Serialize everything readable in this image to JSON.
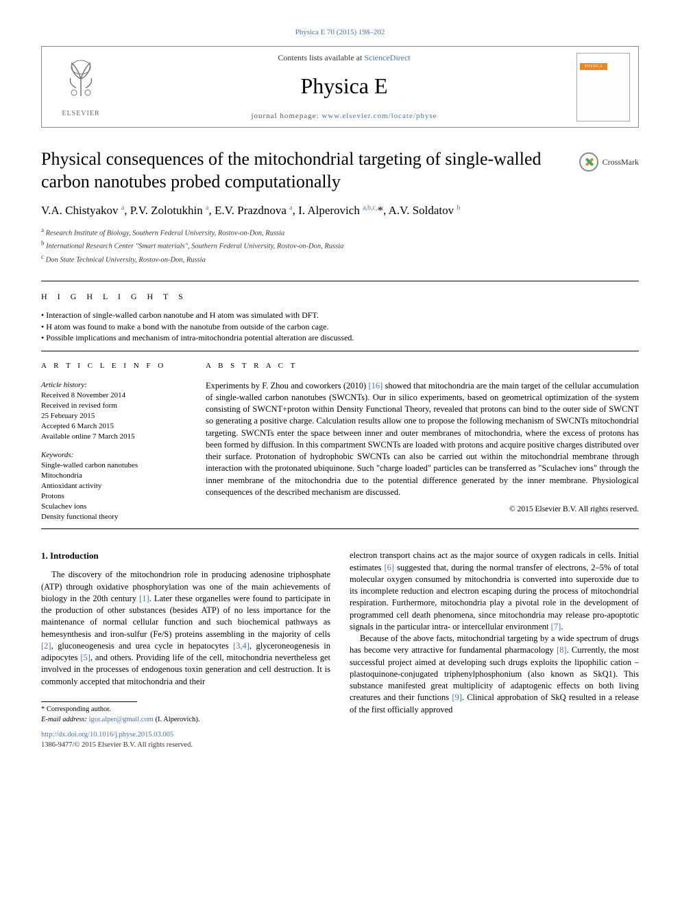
{
  "header": {
    "citation_link": "Physica E 70 (2015) 198–202",
    "contents_prefix": "Contents lists available at ",
    "contents_link": "ScienceDirect",
    "journal_name": "Physica E",
    "homepage_prefix": "journal homepage: ",
    "homepage_url": "www.elsevier.com/locate/physe",
    "publisher_label": "ELSEVIER",
    "cover_badge": "PHYSICA"
  },
  "article": {
    "title": "Physical consequences of the mitochondrial targeting of single-walled carbon nanotubes probed computationally",
    "crossmark_label": "CrossMark",
    "authors_html": "V.A. Chistyakov <sup>a</sup>, P.V. Zolotukhin <sup>a</sup>, E.V. Prazdnova <sup>a</sup>, I. Alperovich <sup>a,b,c,</sup><span class=\"star\">*</span>, A.V. Soldatov <sup>b</sup>",
    "affiliations": [
      {
        "mark": "a",
        "text": "Research Institute of Biology, Southern Federal University, Rostov-on-Don, Russia"
      },
      {
        "mark": "b",
        "text": "International Research Center \"Smart materials\", Southern Federal University, Rostov-on-Don, Russia"
      },
      {
        "mark": "c",
        "text": "Don State Technical University, Rostov-on-Don, Russia"
      }
    ]
  },
  "highlights": {
    "label": "H I G H L I G H T S",
    "items": [
      "Interaction of single-walled carbon nanotube and H atom was simulated with DFT.",
      "H atom was found to make a bond with the nanotube from outside of the carbon cage.",
      "Possible implications and mechanism of intra-mitochondria potential alteration are discussed."
    ]
  },
  "info": {
    "label": "A R T I C L E  I N F O",
    "history_label": "Article history:",
    "history": [
      "Received 8 November 2014",
      "Received in revised form",
      "25 February 2015",
      "Accepted 6 March 2015",
      "Available online 7 March 2015"
    ],
    "keywords_label": "Keywords:",
    "keywords": [
      "Single-walled carbon nanotubes",
      "Mitochondria",
      "Antioxidant activity",
      "Protons",
      "Sculachev ions",
      "Density functional theory"
    ]
  },
  "abstract": {
    "label": "A B S T R A C T",
    "text_pre": "Experiments by F. Zhou and coworkers (2010) ",
    "ref16": "[16]",
    "text_post": " showed that mitochondria are the main target of the cellular accumulation of single-walled carbon nanotubes (SWCNTs). Our in silico experiments, based on geometrical optimization of the system consisting of SWCNT+proton within Density Functional Theory, revealed that protons can bind to the outer side of SWCNT so generating a positive charge. Calculation results allow one to propose the following mechanism of SWCNTs mitochondrial targeting. SWCNTs enter the space between inner and outer membranes of mitochondria, where the excess of protons has been formed by diffusion. In this compartment SWCNTs are loaded with protons and acquire positive charges distributed over their surface. Protonation of hydrophobic SWCNTs can also be carried out within the mitochondrial membrane through interaction with the protonated ubiquinone. Such \"charge loaded\" particles can be transferred as \"Sculachev ions\" through the inner membrane of the mitochondria due to the potential difference generated by the inner membrane. Physiological consequences of the described mechanism are discussed.",
    "copyright": "© 2015 Elsevier B.V. All rights reserved."
  },
  "body": {
    "section_heading": "1.  Introduction",
    "para1_a": "The discovery of the mitochondrion role in producing adenosine triphosphate (ATP) through oxidative phosphorylation was one of the main achievements of biology in the 20th century ",
    "ref1": "[1]",
    "para1_b": ". Later these organelles were found to participate in the production of other substances (besides ATP) of no less importance for the maintenance of normal cellular function and such biochemical pathways as hemesynthesis and iron-sulfur (Fe/S) proteins assembling in the majority of cells ",
    "ref2": "[2]",
    "para1_c": ", gluconeogenesis and urea cycle in hepatocytes ",
    "ref34": "[3,4]",
    "para1_d": ", glyceroneogenesis in adipocytes ",
    "ref5": "[5]",
    "para1_e": ", and others. Providing life of the cell, mitochondria nevertheless get involved in the processes of endogenous toxin generation and cell destruction. It is commonly accepted that mitochondria and their",
    "para2_a": "electron transport chains act as the major source of oxygen radicals in cells. Initial estimates ",
    "ref6": "[6]",
    "para2_b": " suggested that, during the normal transfer of electrons, 2–5% of total molecular oxygen consumed by mitochondria is converted into superoxide due to its incomplete reduction and electron escaping during the process of mitochondrial respiration. Furthermore, mitochondria play a pivotal role in the development of programmed cell death phenomena, since mitochondria may release pro-apoptotic signals in the particular intra- or intercellular environment ",
    "ref7": "[7]",
    "para2_c": ".",
    "para3_a": "Because of the above facts, mitochondrial targeting by a wide spectrum of drugs has become very attractive for fundamental pharmacology ",
    "ref8": "[8]",
    "para3_b": ". Currently, the most successful project aimed at developing such drugs exploits the lipophilic cation – plastoquinone-conjugated triphenylphosphonium (also known as SkQ1). This substance manifested great multiplicity of adaptogenic effects on both living creatures and their functions ",
    "ref9": "[9]",
    "para3_c": ". Clinical approbation of SkQ resulted in a release of the first officially approved"
  },
  "footer": {
    "corr_label": "* Corresponding author.",
    "email_label": "E-mail address: ",
    "email": "igor.alper@gmail.com",
    "email_tail": " (I. Alperovich).",
    "doi": "http://dx.doi.org/10.1016/j.physe.2015.03.005",
    "issn_copy": "1386-9477/© 2015 Elsevier B.V. All rights reserved."
  },
  "colors": {
    "link": "#4a72b8",
    "rule": "#000000",
    "text": "#000000",
    "orange": "#e8871e"
  }
}
